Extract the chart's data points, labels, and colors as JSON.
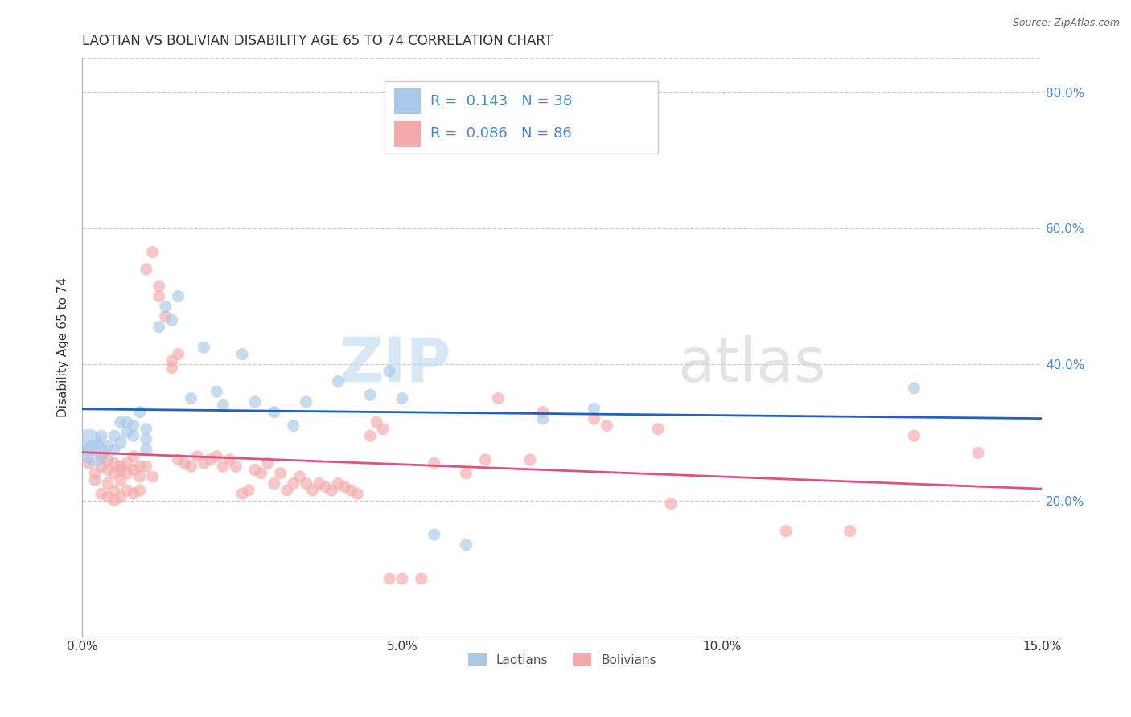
{
  "title": "LAOTIAN VS BOLIVIAN DISABILITY AGE 65 TO 74 CORRELATION CHART",
  "source": "Source: ZipAtlas.com",
  "ylabel": "Disability Age 65 to 74",
  "xlim": [
    0.0,
    0.15
  ],
  "ylim": [
    0.0,
    0.85
  ],
  "xticks": [
    0.0,
    0.05,
    0.1,
    0.15
  ],
  "xticklabels": [
    "0.0%",
    "5.0%",
    "10.0%",
    "15.0%"
  ],
  "yticks": [
    0.2,
    0.4,
    0.6,
    0.8
  ],
  "yticklabels": [
    "20.0%",
    "40.0%",
    "60.0%",
    "80.0%"
  ],
  "watermark_zip": "ZIP",
  "watermark_atlas": "atlas",
  "laotian_color": "#a8c8e8",
  "bolivian_color": "#f4aaaa",
  "laotian_line_color": "#2060c0",
  "bolivian_line_color": "#e05080",
  "tick_label_color": "#4488cc",
  "laotian_points": [
    [
      0.001,
      0.285
    ],
    [
      0.002,
      0.27
    ],
    [
      0.003,
      0.295
    ],
    [
      0.004,
      0.28
    ],
    [
      0.005,
      0.275
    ],
    [
      0.005,
      0.295
    ],
    [
      0.006,
      0.285
    ],
    [
      0.006,
      0.315
    ],
    [
      0.007,
      0.3
    ],
    [
      0.007,
      0.315
    ],
    [
      0.008,
      0.295
    ],
    [
      0.008,
      0.31
    ],
    [
      0.009,
      0.33
    ],
    [
      0.01,
      0.305
    ],
    [
      0.01,
      0.275
    ],
    [
      0.01,
      0.29
    ],
    [
      0.012,
      0.455
    ],
    [
      0.013,
      0.485
    ],
    [
      0.014,
      0.465
    ],
    [
      0.015,
      0.5
    ],
    [
      0.017,
      0.35
    ],
    [
      0.019,
      0.425
    ],
    [
      0.021,
      0.36
    ],
    [
      0.022,
      0.34
    ],
    [
      0.025,
      0.415
    ],
    [
      0.027,
      0.345
    ],
    [
      0.03,
      0.33
    ],
    [
      0.033,
      0.31
    ],
    [
      0.035,
      0.345
    ],
    [
      0.04,
      0.375
    ],
    [
      0.045,
      0.355
    ],
    [
      0.048,
      0.39
    ],
    [
      0.05,
      0.35
    ],
    [
      0.055,
      0.15
    ],
    [
      0.06,
      0.135
    ],
    [
      0.072,
      0.32
    ],
    [
      0.08,
      0.335
    ],
    [
      0.13,
      0.365
    ]
  ],
  "bolivian_points": [
    [
      0.001,
      0.255
    ],
    [
      0.002,
      0.24
    ],
    [
      0.002,
      0.23
    ],
    [
      0.003,
      0.25
    ],
    [
      0.003,
      0.265
    ],
    [
      0.003,
      0.21
    ],
    [
      0.004,
      0.26
    ],
    [
      0.004,
      0.245
    ],
    [
      0.004,
      0.225
    ],
    [
      0.004,
      0.205
    ],
    [
      0.005,
      0.255
    ],
    [
      0.005,
      0.24
    ],
    [
      0.005,
      0.215
    ],
    [
      0.005,
      0.2
    ],
    [
      0.006,
      0.25
    ],
    [
      0.006,
      0.245
    ],
    [
      0.006,
      0.23
    ],
    [
      0.006,
      0.205
    ],
    [
      0.007,
      0.255
    ],
    [
      0.007,
      0.24
    ],
    [
      0.007,
      0.215
    ],
    [
      0.008,
      0.265
    ],
    [
      0.008,
      0.245
    ],
    [
      0.008,
      0.21
    ],
    [
      0.009,
      0.25
    ],
    [
      0.009,
      0.235
    ],
    [
      0.009,
      0.215
    ],
    [
      0.01,
      0.54
    ],
    [
      0.011,
      0.565
    ],
    [
      0.012,
      0.5
    ],
    [
      0.012,
      0.515
    ],
    [
      0.013,
      0.47
    ],
    [
      0.014,
      0.405
    ],
    [
      0.014,
      0.395
    ],
    [
      0.015,
      0.415
    ],
    [
      0.015,
      0.26
    ],
    [
      0.016,
      0.255
    ],
    [
      0.017,
      0.25
    ],
    [
      0.018,
      0.265
    ],
    [
      0.019,
      0.255
    ],
    [
      0.02,
      0.26
    ],
    [
      0.021,
      0.265
    ],
    [
      0.022,
      0.25
    ],
    [
      0.023,
      0.26
    ],
    [
      0.024,
      0.25
    ],
    [
      0.025,
      0.21
    ],
    [
      0.026,
      0.215
    ],
    [
      0.027,
      0.245
    ],
    [
      0.028,
      0.24
    ],
    [
      0.029,
      0.255
    ],
    [
      0.03,
      0.225
    ],
    [
      0.031,
      0.24
    ],
    [
      0.032,
      0.215
    ],
    [
      0.033,
      0.225
    ],
    [
      0.034,
      0.235
    ],
    [
      0.035,
      0.225
    ],
    [
      0.036,
      0.215
    ],
    [
      0.037,
      0.225
    ],
    [
      0.038,
      0.22
    ],
    [
      0.039,
      0.215
    ],
    [
      0.04,
      0.225
    ],
    [
      0.041,
      0.22
    ],
    [
      0.042,
      0.215
    ],
    [
      0.043,
      0.21
    ],
    [
      0.045,
      0.295
    ],
    [
      0.046,
      0.315
    ],
    [
      0.047,
      0.305
    ],
    [
      0.048,
      0.085
    ],
    [
      0.05,
      0.085
    ],
    [
      0.053,
      0.085
    ],
    [
      0.055,
      0.255
    ],
    [
      0.06,
      0.24
    ],
    [
      0.063,
      0.26
    ],
    [
      0.065,
      0.35
    ],
    [
      0.07,
      0.26
    ],
    [
      0.072,
      0.33
    ],
    [
      0.08,
      0.32
    ],
    [
      0.082,
      0.31
    ],
    [
      0.09,
      0.305
    ],
    [
      0.092,
      0.195
    ],
    [
      0.11,
      0.155
    ],
    [
      0.12,
      0.155
    ],
    [
      0.13,
      0.295
    ],
    [
      0.14,
      0.27
    ],
    [
      0.01,
      0.25
    ],
    [
      0.011,
      0.235
    ]
  ],
  "background_color": "#ffffff",
  "grid_color": "#cccccc",
  "title_fontsize": 12,
  "axis_fontsize": 11,
  "tick_fontsize": 11,
  "legend_fontsize": 13
}
